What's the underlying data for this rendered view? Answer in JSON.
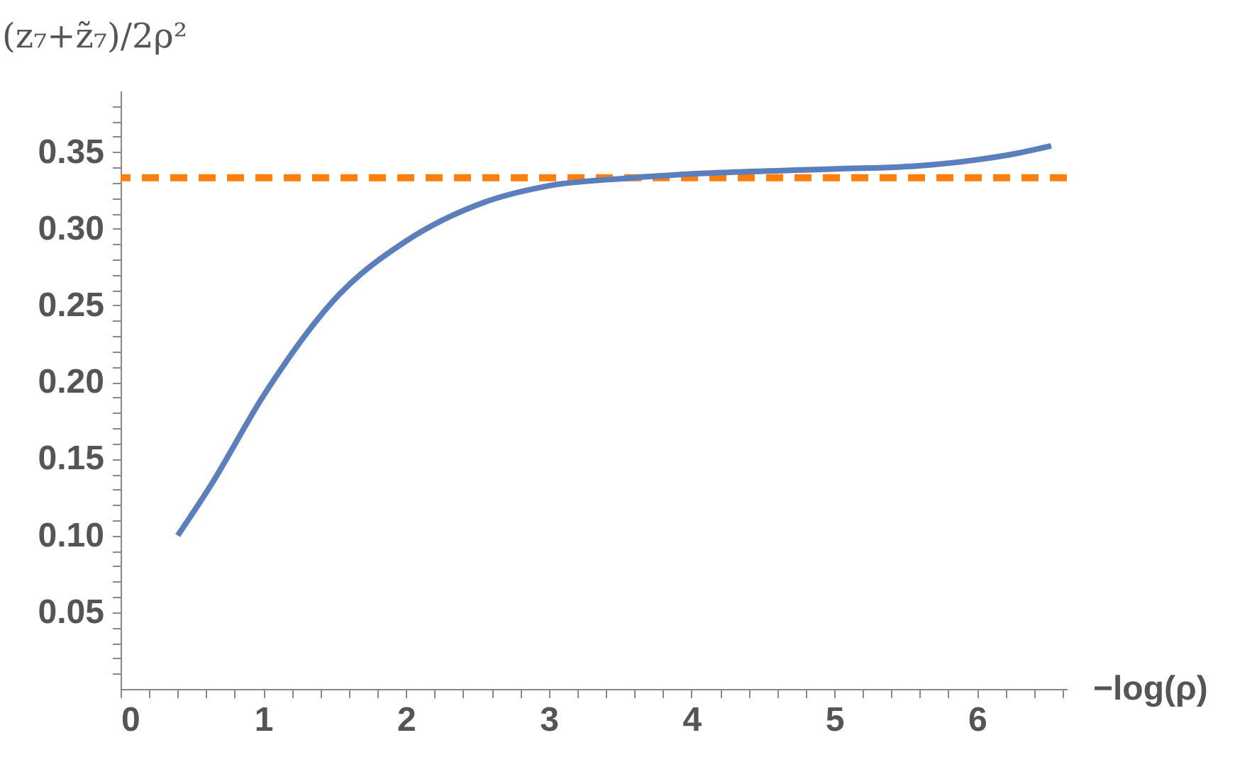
{
  "chart_data": {
    "type": "line",
    "xlabel": "−log(ρ)",
    "ylabel": "(z₇+z̃₇)/2ρ²",
    "x": [
      0.4,
      0.64,
      1.0,
      1.53,
      2.0,
      2.54,
      3.0,
      3.56,
      4.06,
      5.01,
      5.59,
      6.0,
      6.27,
      6.52
    ],
    "series": [
      {
        "color": "#5b7fbc",
        "values": [
          0.1,
          0.134,
          0.191,
          0.257,
          0.292,
          0.317,
          0.328,
          0.333,
          0.336,
          0.339,
          0.341,
          0.345,
          0.349,
          0.354
        ]
      }
    ],
    "ref_lines": [
      {
        "axis": "y",
        "value": 0.3333,
        "label": null,
        "color": "#ff7f0e",
        "line_style": "dashed"
      }
    ],
    "xlim": [
      0,
      6.63
    ],
    "ylim": [
      0,
      0.39
    ],
    "xticks": [
      0,
      {
        "value": 0.2,
        "label": null
      },
      {
        "value": 0.4,
        "label": null
      },
      {
        "value": 0.6,
        "label": null
      },
      {
        "value": 0.8,
        "label": null
      },
      1,
      {
        "value": 1.2,
        "label": null
      },
      {
        "value": 1.4,
        "label": null
      },
      {
        "value": 1.6,
        "label": null
      },
      {
        "value": 1.8,
        "label": null
      },
      2,
      {
        "value": 2.2,
        "label": null
      },
      {
        "value": 2.4,
        "label": null
      },
      {
        "value": 2.6,
        "label": null
      },
      {
        "value": 2.8,
        "label": null
      },
      3,
      {
        "value": 3.2,
        "label": null
      },
      {
        "value": 3.4,
        "label": null
      },
      {
        "value": 3.6,
        "label": null
      },
      {
        "value": 3.8,
        "label": null
      },
      4,
      {
        "value": 4.2,
        "label": null
      },
      {
        "value": 4.4,
        "label": null
      },
      {
        "value": 4.6,
        "label": null
      },
      {
        "value": 4.8,
        "label": null
      },
      5,
      {
        "value": 5.2,
        "label": null
      },
      {
        "value": 5.4,
        "label": null
      },
      {
        "value": 5.6,
        "label": null
      },
      {
        "value": 5.8,
        "label": null
      },
      6,
      {
        "value": 6.2,
        "label": null
      },
      {
        "value": 6.4,
        "label": null
      },
      {
        "value": 6.6,
        "label": null
      }
    ],
    "yticks": [
      {
        "value": 0.01,
        "label": null
      },
      {
        "value": 0.02,
        "label": null
      },
      {
        "value": 0.03,
        "label": null
      },
      {
        "value": 0.04,
        "label": null
      },
      {
        "value": 0.05,
        "label": "0.05"
      },
      {
        "value": 0.06,
        "label": null
      },
      {
        "value": 0.07,
        "label": null
      },
      {
        "value": 0.08,
        "label": null
      },
      {
        "value": 0.09,
        "label": null
      },
      {
        "value": 0.1,
        "label": "0.10"
      },
      {
        "value": 0.11,
        "label": null
      },
      {
        "value": 0.12,
        "label": null
      },
      {
        "value": 0.13,
        "label": null
      },
      {
        "value": 0.14,
        "label": null
      },
      {
        "value": 0.15,
        "label": "0.15"
      },
      {
        "value": 0.16,
        "label": null
      },
      {
        "value": 0.17,
        "label": null
      },
      {
        "value": 0.18,
        "label": null
      },
      {
        "value": 0.19,
        "label": null
      },
      {
        "value": 0.2,
        "label": "0.20"
      },
      {
        "value": 0.21,
        "label": null
      },
      {
        "value": 0.22,
        "label": null
      },
      {
        "value": 0.23,
        "label": null
      },
      {
        "value": 0.24,
        "label": null
      },
      {
        "value": 0.25,
        "label": "0.25"
      },
      {
        "value": 0.26,
        "label": null
      },
      {
        "value": 0.27,
        "label": null
      },
      {
        "value": 0.28,
        "label": null
      },
      {
        "value": 0.29,
        "label": null
      },
      {
        "value": 0.3,
        "label": "0.30"
      },
      {
        "value": 0.31,
        "label": null
      },
      {
        "value": 0.32,
        "label": null
      },
      {
        "value": 0.33,
        "label": null
      },
      {
        "value": 0.34,
        "label": null
      },
      {
        "value": 0.35,
        "label": "0.35"
      },
      {
        "value": 0.36,
        "label": null
      },
      {
        "value": 0.37,
        "label": null
      },
      {
        "value": 0.38,
        "label": null
      }
    ],
    "grid": false,
    "line_style": "solid",
    "marker": "none"
  }
}
